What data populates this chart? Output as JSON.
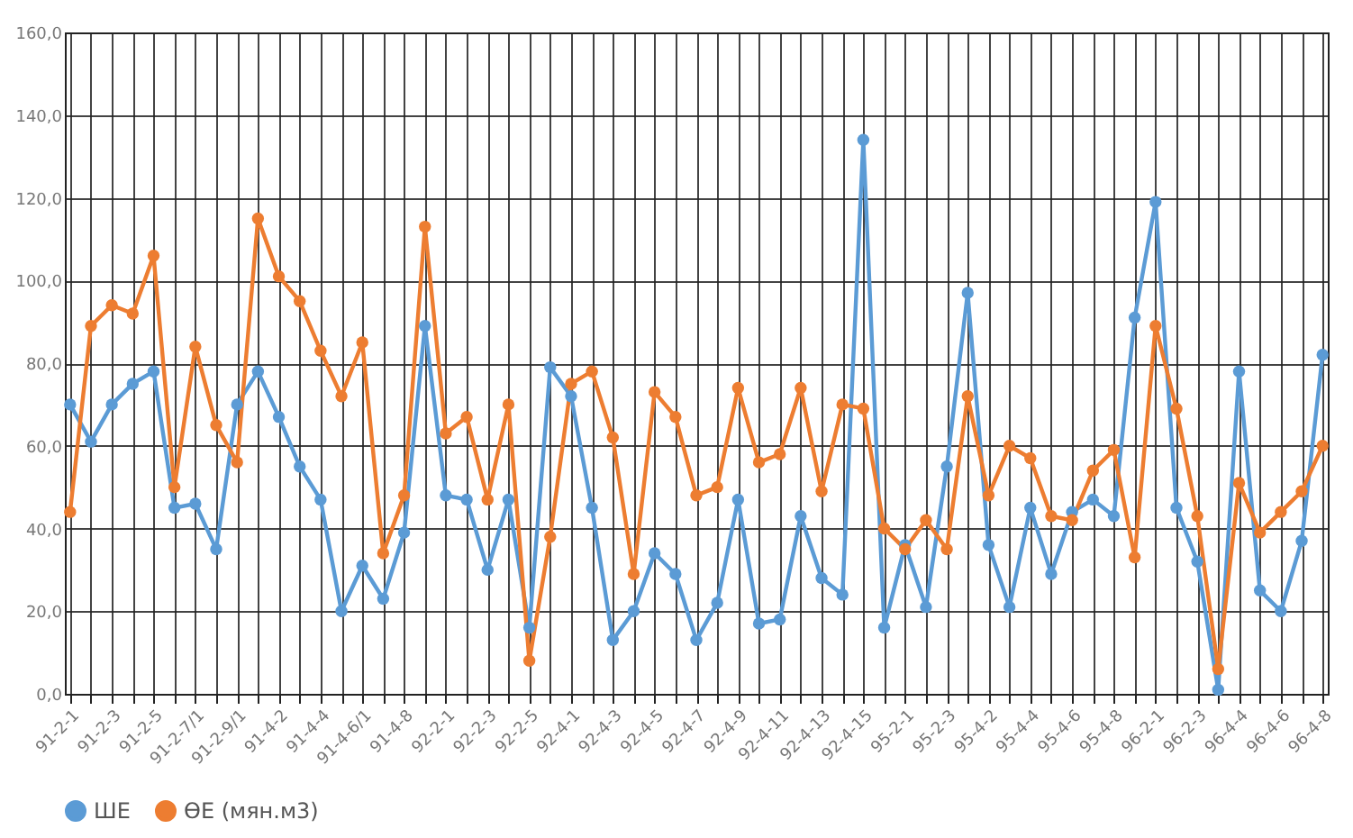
{
  "chart_data": {
    "type": "line",
    "categories": [
      "91-2-1",
      null,
      "91-2-3",
      null,
      "91-2-5",
      null,
      "91-2-7/1",
      null,
      "91-2-9/1",
      null,
      "91-4-2",
      null,
      "91-4-4",
      null,
      "91-4-6/1",
      null,
      "91-4-8",
      null,
      "92-2-1",
      null,
      "92-2-3",
      null,
      "92-2-5",
      null,
      "92-4-1",
      null,
      "92-4-3",
      null,
      "92-4-5",
      null,
      "92-4-7",
      null,
      "92-4-9",
      null,
      "92-4-11",
      null,
      "92-4-13",
      null,
      "92-4-15",
      null,
      "95-2-1",
      null,
      "95-2-3",
      null,
      "95-4-2",
      null,
      "95-4-4",
      null,
      "95-4-6",
      null,
      "95-4-8",
      null,
      "96-2-1",
      null,
      "96-2-3",
      null,
      "96-4-4",
      null,
      "96-4-6",
      null,
      "96-4-8"
    ],
    "series": [
      {
        "name": "ШЕ",
        "color": "#5b9bd5",
        "values": [
          70,
          61,
          70,
          75,
          78,
          45,
          46,
          35,
          70,
          78,
          67,
          55,
          47,
          20,
          31,
          23,
          39,
          89,
          48,
          47,
          30,
          47,
          16,
          79,
          72,
          45,
          13,
          20,
          34,
          29,
          13,
          22,
          47,
          17,
          18,
          43,
          28,
          24,
          134,
          16,
          36,
          21,
          55,
          97,
          36,
          21,
          45,
          29,
          44,
          47,
          43,
          91,
          119,
          45,
          32,
          1,
          78,
          25,
          20,
          37,
          82
        ]
      },
      {
        "name": "ӨЕ (мян.м3)",
        "color": "#ed7d31",
        "values": [
          44,
          89,
          94,
          92,
          106,
          50,
          84,
          65,
          56,
          115,
          101,
          95,
          83,
          72,
          85,
          34,
          48,
          113,
          63,
          67,
          47,
          70,
          8,
          38,
          75,
          78,
          62,
          29,
          73,
          67,
          48,
          50,
          74,
          56,
          58,
          74,
          49,
          70,
          69,
          40,
          35,
          42,
          35,
          72,
          48,
          60,
          57,
          43,
          42,
          54,
          59,
          33,
          89,
          69,
          43,
          6,
          51,
          39,
          44,
          49,
          60
        ]
      }
    ],
    "ylim": [
      0,
      160
    ],
    "yticks": [
      {
        "value": 0,
        "label": "0,0"
      },
      {
        "value": 20,
        "label": "20,0"
      },
      {
        "value": 40,
        "label": "40,0"
      },
      {
        "value": 60,
        "label": "60,0"
      },
      {
        "value": 80,
        "label": "80,0"
      },
      {
        "value": 100,
        "label": "100,0"
      },
      {
        "value": 120,
        "label": "120,0"
      },
      {
        "value": 140,
        "label": "140,0"
      },
      {
        "value": 160,
        "label": "160,0"
      }
    ],
    "grid": true,
    "legend": "bottom",
    "marker": "circle"
  }
}
